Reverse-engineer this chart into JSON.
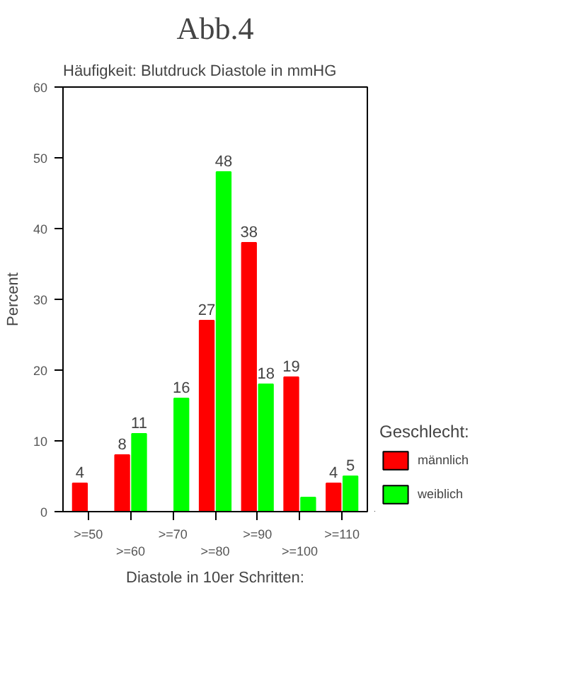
{
  "chart_data": {
    "type": "bar",
    "title": "Abb.4",
    "subtitle": "Häufigkeit: Blutdruck Diastole in mmHG",
    "xlabel": "Diastole in 10er Schritten:",
    "ylabel": "Percent",
    "legend_title": "Geschlecht:",
    "legend": "right",
    "categories": [
      ">=50",
      ">=60",
      ">=70",
      ">=80",
      ">=90",
      ">=100",
      ">=110"
    ],
    "series": [
      {
        "name": "männlich",
        "color": "#ff0000",
        "values": [
          4,
          8,
          0,
          27,
          38,
          19,
          4
        ],
        "value_labels": [
          "4",
          "8",
          null,
          "27",
          "38",
          "19",
          "4"
        ]
      },
      {
        "name": "weiblich",
        "color": "#00ff00",
        "values": [
          0,
          11,
          16,
          48,
          18,
          2,
          5
        ],
        "value_labels": [
          null,
          "11",
          "16",
          "48",
          "18",
          null,
          "5"
        ]
      }
    ],
    "ylim": [
      0,
      60
    ],
    "yticks": [
      0,
      10,
      20,
      30,
      40,
      50,
      60
    ],
    "grid": false
  }
}
